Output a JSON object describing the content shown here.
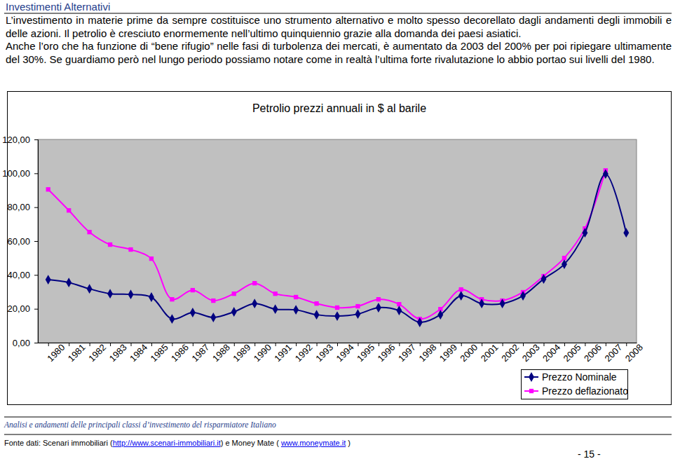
{
  "header": {
    "title": "Investimenti Alternativi"
  },
  "paragraphs": [
    "L’investimento in materie prime da sempre costituisce uno strumento alternativo e molto spesso decorellato dagli andamenti degli immobili e delle azioni. Il petrolio è cresciuto enormemente nell’ultimo quinquiennio grazie alla domanda dei paesi asiatici.",
    "Anche l’oro che ha funzione di “bene rifugio” nelle fasi di turbolenza dei mercati, è aumentato da 2003 del 200% per poi ripiegare ultimamente del 30%. Se guardiamo però nel lungo periodo possiamo notare come in realtà l’ultima forte rivalutazione lo abbio portao sui livelli del 1980."
  ],
  "chart_data": {
    "type": "line",
    "title": "Petrolio prezzi annuali in $ al barile",
    "categories": [
      "1980",
      "1981",
      "1982",
      "1983",
      "1984",
      "1985",
      "1986",
      "1987",
      "1988",
      "1989",
      "1990",
      "1991",
      "1992",
      "1993",
      "1994",
      "1995",
      "1996",
      "1997",
      "1998",
      "1999",
      "2000",
      "2001",
      "2002",
      "2003",
      "2004",
      "2005",
      "2006",
      "2007",
      "2008"
    ],
    "series": [
      {
        "name": "Prezzo Nominale",
        "color": "#000080",
        "marker": "diamond",
        "line_style": "solid",
        "values": [
          37.2,
          35.5,
          31.8,
          28.9,
          28.5,
          26.9,
          14.0,
          17.8,
          14.9,
          18.2,
          23.1,
          19.8,
          19.4,
          16.5,
          15.7,
          16.9,
          20.7,
          19.0,
          12.0,
          16.5,
          27.7,
          23.1,
          23.1,
          27.7,
          37.6,
          46.3,
          64.9,
          99.6,
          64.9
        ]
      },
      {
        "name": "Prezzo deflazionato",
        "color": "#ff00ff",
        "marker": "square",
        "line_style": "solid",
        "values": [
          90.5,
          78.1,
          65.3,
          57.9,
          55.0,
          49.6,
          25.6,
          31.0,
          24.8,
          28.9,
          35.1,
          28.9,
          26.9,
          23.1,
          20.7,
          21.5,
          25.6,
          22.7,
          14.0,
          19.8,
          31.4,
          25.6,
          24.8,
          29.8,
          39.3,
          50.0,
          67.4,
          101.7,
          null
        ]
      }
    ],
    "ylim": [
      0,
      120
    ],
    "yticks": [
      {
        "value": 0,
        "label": "0,00"
      },
      {
        "value": 20,
        "label": "20,00"
      },
      {
        "value": 40,
        "label": "40,00"
      },
      {
        "value": 60,
        "label": "60,00"
      },
      {
        "value": 80,
        "label": "80,00"
      },
      {
        "value": 100,
        "label": "100,00"
      },
      {
        "value": 120,
        "label": "120,00"
      }
    ],
    "grid": false,
    "legend": "bottom-right"
  },
  "footer": {
    "caption": "Analisi e andamenti delle principali classi d’investimento del risparmiatore Italiano",
    "source_prefix": "Fonte dati: Scenari immobiliari (",
    "source_link_1": "http://www.scenari-immobiliari.it",
    "source_middle": ") e Money Mate ( ",
    "source_link_2": "www.moneymate.it",
    "source_suffix": " )",
    "page": "- 15 -"
  }
}
